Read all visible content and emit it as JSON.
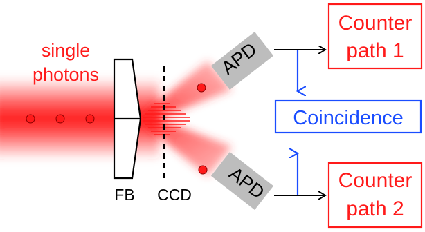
{
  "labels": {
    "source_line1": "single",
    "source_line2": "photons",
    "fb": "FB",
    "ccd": "CCD",
    "apd_top": "APD",
    "apd_bottom": "APD",
    "counter1_line1": "Counter",
    "counter1_line2": "path 1",
    "counter2_line1": "Counter",
    "counter2_line2": "path 2",
    "coincidence": "Coincidence"
  },
  "colors": {
    "red": "#ff1a1a",
    "blue": "#1a4dff",
    "detector_gray": "#bdbdbd",
    "line": "#000000"
  }
}
